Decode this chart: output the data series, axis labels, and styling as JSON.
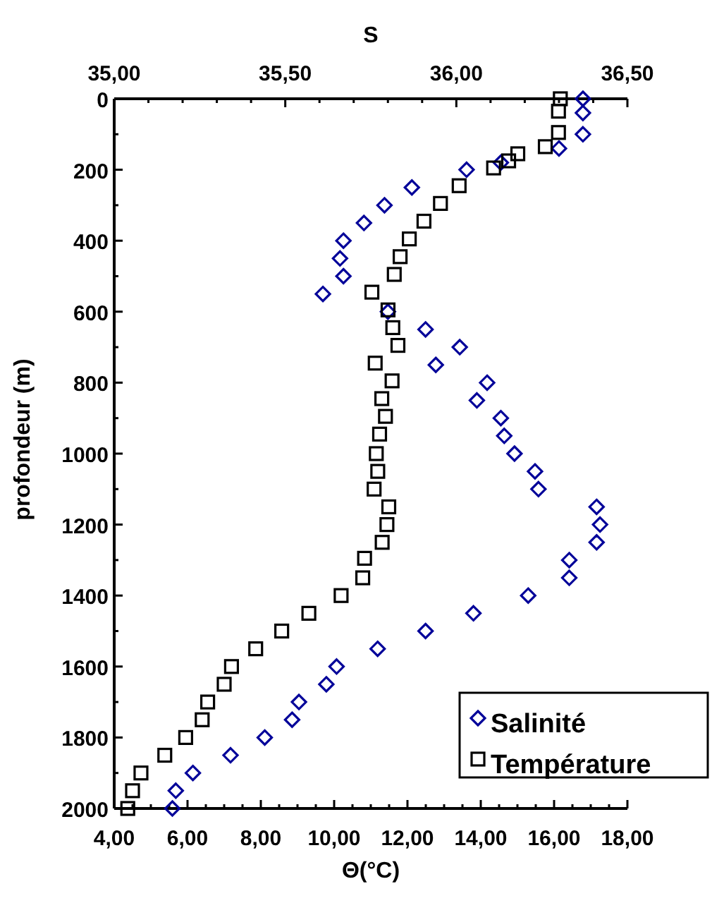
{
  "chart_data": {
    "type": "scatter",
    "xlabel": "Θ(°C)",
    "x2label": "S",
    "ylabel": "profondeur (m)",
    "xlim": [
      4,
      18
    ],
    "xticks": [
      {
        "value": 4,
        "label": "4,00"
      },
      {
        "value": 4.5,
        "label": null
      },
      {
        "value": 5,
        "label": null
      },
      {
        "value": 5.5,
        "label": null
      },
      {
        "value": 6,
        "label": "6,00"
      },
      {
        "value": 6.5,
        "label": null
      },
      {
        "value": 7,
        "label": null
      },
      {
        "value": 7.5,
        "label": null
      },
      {
        "value": 8,
        "label": "8,00"
      },
      {
        "value": 8.5,
        "label": null
      },
      {
        "value": 9,
        "label": null
      },
      {
        "value": 9.5,
        "label": null
      },
      {
        "value": 10,
        "label": "10,00"
      },
      {
        "value": 10.5,
        "label": null
      },
      {
        "value": 11,
        "label": null
      },
      {
        "value": 11.5,
        "label": null
      },
      {
        "value": 12,
        "label": "12,00"
      },
      {
        "value": 12.5,
        "label": null
      },
      {
        "value": 13,
        "label": null
      },
      {
        "value": 13.5,
        "label": null
      },
      {
        "value": 14,
        "label": "14,00"
      },
      {
        "value": 14.5,
        "label": null
      },
      {
        "value": 15,
        "label": null
      },
      {
        "value": 15.5,
        "label": null
      },
      {
        "value": 16,
        "label": "16,00"
      },
      {
        "value": 16.5,
        "label": null
      },
      {
        "value": 17,
        "label": null
      },
      {
        "value": 17.5,
        "label": null
      },
      {
        "value": 18,
        "label": "18,00"
      }
    ],
    "x2lim": [
      35,
      36.5
    ],
    "x2ticks": [
      {
        "value": 35,
        "label": "35,00"
      },
      {
        "value": 35.1,
        "label": null
      },
      {
        "value": 35.2,
        "label": null
      },
      {
        "value": 35.3,
        "label": null
      },
      {
        "value": 35.4,
        "label": null
      },
      {
        "value": 35.5,
        "label": "35,50"
      },
      {
        "value": 35.6,
        "label": null
      },
      {
        "value": 35.7,
        "label": null
      },
      {
        "value": 35.8,
        "label": null
      },
      {
        "value": 35.9,
        "label": null
      },
      {
        "value": 36,
        "label": "36,00"
      },
      {
        "value": 36.1,
        "label": null
      },
      {
        "value": 36.2,
        "label": null
      },
      {
        "value": 36.3,
        "label": null
      },
      {
        "value": 36.4,
        "label": null
      },
      {
        "value": 36.5,
        "label": "36,50"
      }
    ],
    "ylim": [
      2000,
      0
    ],
    "yticks": [
      0,
      {
        "value": 100,
        "label": null
      },
      200,
      {
        "value": 300,
        "label": null
      },
      400,
      {
        "value": 500,
        "label": null
      },
      600,
      {
        "value": 700,
        "label": null
      },
      800,
      {
        "value": 900,
        "label": null
      },
      1000,
      {
        "value": 1100,
        "label": null
      },
      1200,
      {
        "value": 1300,
        "label": null
      },
      1400,
      {
        "value": 1500,
        "label": null
      },
      1600,
      {
        "value": 1700,
        "label": null
      },
      1800,
      {
        "value": 1900,
        "label": null
      },
      2000
    ],
    "legend": "bottom right",
    "grid": false,
    "series": [
      {
        "name": "Salinité",
        "color": "#000099",
        "marker": "diamond",
        "axis": "x2",
        "x": [
          36.37,
          36.37,
          36.37,
          36.3,
          36.13,
          36.03,
          35.87,
          35.79,
          35.73,
          35.67,
          35.66,
          35.67,
          35.61,
          35.8,
          35.91,
          36.01,
          35.94,
          36.09,
          36.06,
          36.13,
          36.14,
          36.17,
          36.23,
          36.24,
          36.41,
          36.42,
          36.41,
          36.33,
          36.33,
          36.21,
          36.05,
          35.91,
          35.77,
          35.65,
          35.62,
          35.54,
          35.52,
          35.44,
          35.34,
          35.23,
          35.18,
          35.17
        ],
        "values": [
          0,
          40,
          100,
          140,
          180,
          200,
          250,
          300,
          350,
          400,
          450,
          500,
          550,
          600,
          650,
          700,
          750,
          800,
          850,
          900,
          950,
          1000,
          1050,
          1100,
          1150,
          1200,
          1250,
          1300,
          1350,
          1400,
          1450,
          1500,
          1550,
          1600,
          1650,
          1700,
          1750,
          1800,
          1850,
          1900,
          1950,
          2000
        ]
      },
      {
        "name": "Température",
        "color": "#000000",
        "marker": "square",
        "x": [
          16.17,
          16.12,
          16.12,
          15.76,
          15.01,
          14.76,
          14.35,
          13.41,
          12.9,
          12.45,
          12.05,
          11.8,
          11.64,
          11.03,
          11.47,
          11.6,
          11.74,
          11.12,
          11.58,
          11.3,
          11.4,
          11.24,
          11.15,
          11.19,
          11.09,
          11.49,
          11.44,
          11.31,
          10.83,
          10.78,
          10.19,
          9.31,
          8.57,
          7.86,
          7.2,
          7,
          6.55,
          6.4,
          5.95,
          5.38,
          4.73,
          4.5,
          4.37
        ],
        "values": [
          0,
          35,
          95,
          135,
          155,
          175,
          195,
          245,
          295,
          345,
          395,
          445,
          495,
          545,
          595,
          645,
          695,
          745,
          795,
          845,
          895,
          945,
          1000,
          1050,
          1100,
          1150,
          1200,
          1250,
          1295,
          1350,
          1400,
          1450,
          1500,
          1550,
          1600,
          1650,
          1700,
          1750,
          1800,
          1850,
          1900,
          1950,
          2000
        ]
      }
    ]
  }
}
